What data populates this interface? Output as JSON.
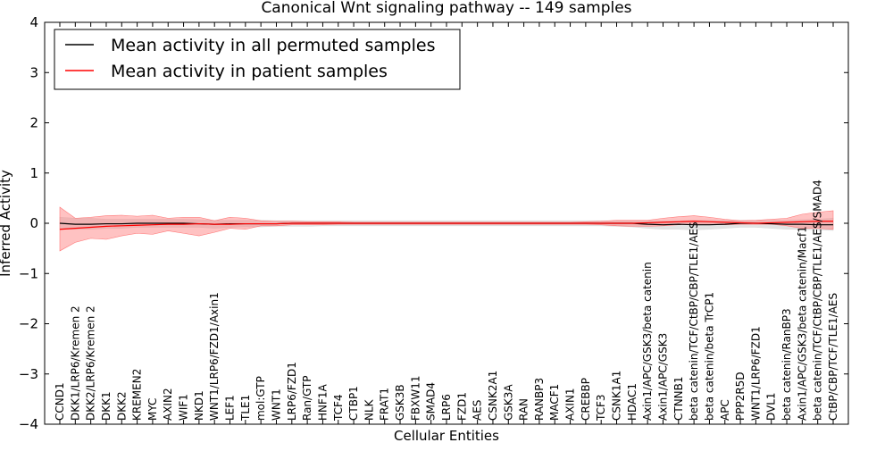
{
  "chart_data": {
    "type": "line",
    "title": "Canonical Wnt signaling pathway -- 149 samples",
    "xlabel": "Cellular Entities",
    "ylabel": "Inferred Activity",
    "ylim": [
      -4,
      4
    ],
    "yticks": [
      -4,
      -3,
      -2,
      -1,
      0,
      1,
      2,
      3,
      4
    ],
    "ytick_labels": [
      "−4",
      "−3",
      "−2",
      "−1",
      "0",
      "1",
      "2",
      "3",
      "4"
    ],
    "legend_position": "top-left",
    "categories": [
      "CCND1",
      "DKK1/LRP6/Kremen 2",
      "DKK2/LRP6/Kremen 2",
      "DKK1",
      "DKK2",
      "KREMEN2",
      "MYC",
      "AXIN2",
      "WIF1",
      "NKD1",
      "WNT1/LRP6/FZD1/Axin1",
      "LEF1",
      "TLE1",
      "mol:GTP",
      "WNT1",
      "LRP6/FZD1",
      "Ran/GTP",
      "HNF1A",
      "TCF4",
      "CTBP1",
      "NLK",
      "FRAT1",
      "GSK3B",
      "FBXW11",
      "SMAD4",
      "LRP6",
      "FZD1",
      "AES",
      "CSNK2A1",
      "GSK3A",
      "RAN",
      "RANBP3",
      "MACF1",
      "AXIN1",
      "CREBBP",
      "TCF3",
      "CSNK1A1",
      "HDAC1",
      "Axin1/APC/GSK3/beta catenin",
      "Axin1/APC/GSK3",
      "CTNNB1",
      "beta catenin/TCF/CtBP/CBP/TLE1/AES",
      "beta catenin/beta TrCP1",
      "APC",
      "PPP2R5D",
      "WNT1/LRP6/FZD1",
      "DVL1",
      "beta catenin/RanBP3",
      "Axin1/APC/GSK3/beta catenin/Macf1",
      "beta catenin/TCF/CtBP/CBP/TLE1/AES/SMAD4",
      "CtBP/CBP/TCF/TLE1/AES"
    ],
    "series": [
      {
        "name": "Mean activity in all permuted samples",
        "color": "#000000",
        "values": [
          0.0,
          -0.02,
          -0.02,
          -0.01,
          -0.01,
          0.0,
          0.0,
          0.0,
          0.0,
          -0.01,
          -0.02,
          -0.01,
          -0.01,
          -0.01,
          -0.01,
          0.0,
          0.0,
          0.0,
          0.0,
          0.0,
          0.0,
          0.0,
          0.0,
          0.0,
          0.0,
          0.0,
          0.0,
          0.0,
          0.0,
          0.0,
          0.0,
          0.0,
          0.0,
          0.0,
          0.0,
          0.0,
          0.0,
          0.0,
          -0.02,
          -0.03,
          -0.02,
          -0.03,
          -0.03,
          -0.02,
          0.0,
          0.0,
          -0.01,
          -0.02,
          -0.02,
          -0.03,
          -0.03
        ],
        "band_low": [
          -0.12,
          -0.12,
          -0.12,
          -0.1,
          -0.1,
          -0.08,
          -0.08,
          -0.08,
          -0.08,
          -0.08,
          -0.1,
          -0.08,
          -0.07,
          -0.07,
          -0.06,
          -0.06,
          -0.06,
          -0.05,
          -0.05,
          -0.05,
          -0.05,
          -0.05,
          -0.05,
          -0.05,
          -0.05,
          -0.05,
          -0.05,
          -0.05,
          -0.05,
          -0.05,
          -0.05,
          -0.05,
          -0.05,
          -0.05,
          -0.05,
          -0.05,
          -0.06,
          -0.07,
          -0.1,
          -0.12,
          -0.12,
          -0.13,
          -0.12,
          -0.1,
          -0.08,
          -0.08,
          -0.1,
          -0.12,
          -0.12,
          -0.13,
          -0.14
        ],
        "band_high": [
          0.12,
          0.1,
          0.1,
          0.08,
          0.08,
          0.08,
          0.08,
          0.08,
          0.08,
          0.07,
          0.06,
          0.06,
          0.06,
          0.06,
          0.05,
          0.05,
          0.05,
          0.05,
          0.05,
          0.05,
          0.05,
          0.05,
          0.05,
          0.05,
          0.05,
          0.05,
          0.05,
          0.05,
          0.05,
          0.05,
          0.05,
          0.05,
          0.05,
          0.05,
          0.05,
          0.05,
          0.05,
          0.05,
          0.05,
          0.05,
          0.05,
          0.06,
          0.06,
          0.06,
          0.06,
          0.06,
          0.06,
          0.06,
          0.07,
          0.08,
          0.1
        ]
      },
      {
        "name": "Mean activity in patient samples",
        "color": "#ff0000",
        "values": [
          -0.12,
          -0.1,
          -0.08,
          -0.06,
          -0.05,
          -0.04,
          -0.03,
          -0.02,
          -0.02,
          -0.01,
          -0.02,
          -0.02,
          -0.01,
          -0.01,
          -0.01,
          0.0,
          0.0,
          0.0,
          0.0,
          0.0,
          0.0,
          0.0,
          0.0,
          0.0,
          0.0,
          0.0,
          0.0,
          0.0,
          0.0,
          0.0,
          0.0,
          0.0,
          0.0,
          0.0,
          0.0,
          0.0,
          0.0,
          0.0,
          0.01,
          0.02,
          0.03,
          0.04,
          0.03,
          0.02,
          0.01,
          0.0,
          0.01,
          0.02,
          0.03,
          0.04,
          0.04
        ],
        "band_low": [
          -0.55,
          -0.38,
          -0.3,
          -0.32,
          -0.25,
          -0.2,
          -0.22,
          -0.15,
          -0.2,
          -0.25,
          -0.18,
          -0.1,
          -0.12,
          -0.05,
          -0.05,
          -0.03,
          -0.03,
          -0.03,
          -0.02,
          -0.02,
          -0.02,
          -0.02,
          -0.02,
          -0.02,
          -0.02,
          -0.02,
          -0.02,
          -0.02,
          -0.02,
          -0.02,
          -0.02,
          -0.02,
          -0.02,
          -0.02,
          -0.02,
          -0.03,
          -0.05,
          -0.06,
          -0.06,
          -0.05,
          -0.03,
          -0.02,
          -0.02,
          -0.03,
          -0.02,
          -0.02,
          -0.02,
          -0.05,
          -0.1,
          -0.1,
          -0.12
        ],
        "band_high": [
          0.32,
          0.1,
          0.12,
          0.15,
          0.16,
          0.14,
          0.16,
          0.1,
          0.12,
          0.12,
          0.05,
          0.12,
          0.1,
          0.05,
          0.04,
          0.04,
          0.03,
          0.03,
          0.03,
          0.02,
          0.02,
          0.02,
          0.02,
          0.02,
          0.02,
          0.02,
          0.02,
          0.02,
          0.02,
          0.02,
          0.02,
          0.02,
          0.02,
          0.02,
          0.03,
          0.04,
          0.06,
          0.06,
          0.06,
          0.1,
          0.13,
          0.15,
          0.12,
          0.08,
          0.05,
          0.06,
          0.08,
          0.1,
          0.18,
          0.22,
          0.25
        ]
      }
    ]
  }
}
